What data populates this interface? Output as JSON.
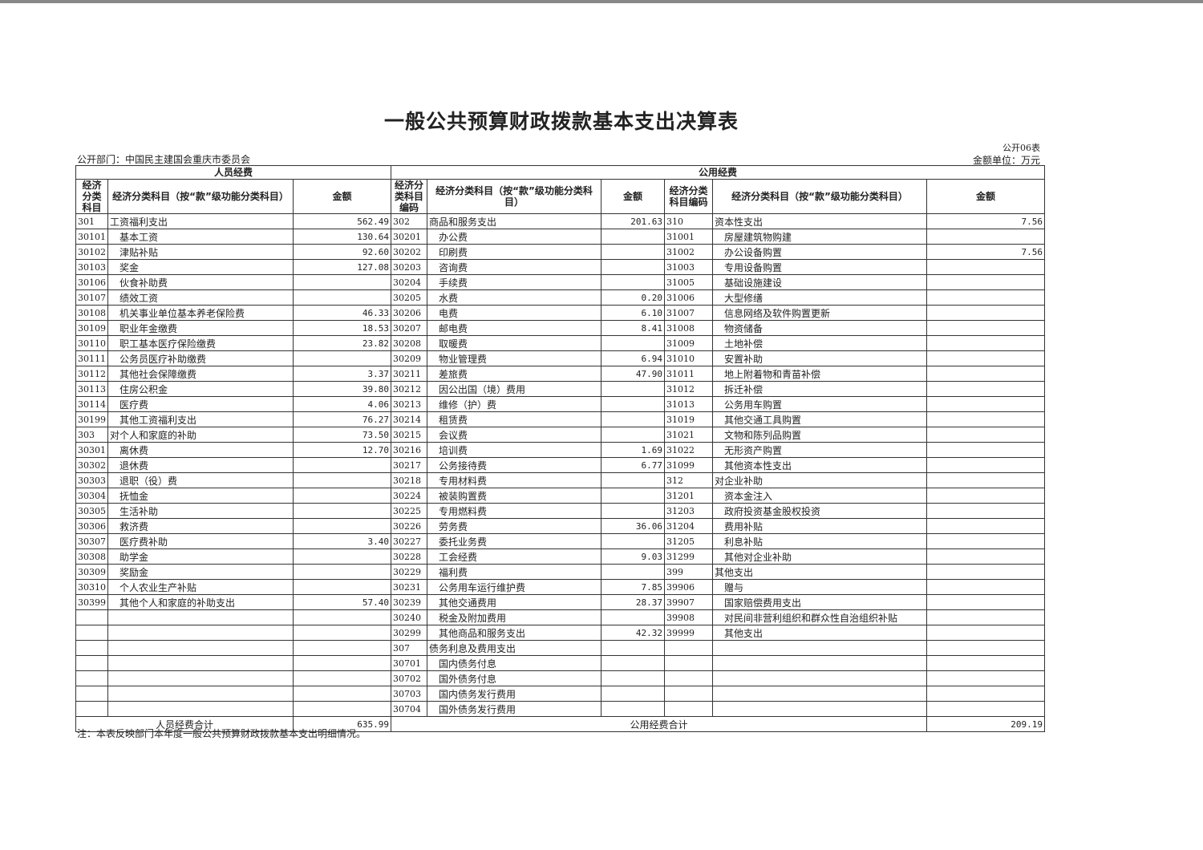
{
  "title": "一般公共预算财政拨款基本支出决算表",
  "table_no": "公开06表",
  "department": "公开部门：中国民主建国会重庆市委员会",
  "unit": "金额单位：万元",
  "headers": {
    "personnel": "人员经费",
    "public": "公用经费",
    "code_left": "经济分类科目",
    "code_mid": "经济分类科目编码",
    "code_right": "经济分类科目编码",
    "name_left": "经济分类科目（按“款”级功能分类科目）",
    "name_mid": "经济分类科目（按“款”级功能分类科目）",
    "name_right": "经济分类科目（按“款”级功能分类科目）",
    "amount": "金额"
  },
  "left": [
    [
      "301",
      "工资福利支出",
      "562.49"
    ],
    [
      "30101",
      "基本工资",
      "130.64"
    ],
    [
      "30102",
      "津贴补贴",
      "92.60"
    ],
    [
      "30103",
      "奖金",
      "127.08"
    ],
    [
      "30106",
      "伙食补助费",
      ""
    ],
    [
      "30107",
      "绩效工资",
      ""
    ],
    [
      "30108",
      "机关事业单位基本养老保险费",
      "46.33"
    ],
    [
      "30109",
      "职业年金缴费",
      "18.53"
    ],
    [
      "30110",
      "职工基本医疗保险缴费",
      "23.82"
    ],
    [
      "30111",
      "公务员医疗补助缴费",
      ""
    ],
    [
      "30112",
      "其他社会保障缴费",
      "3.37"
    ],
    [
      "30113",
      "住房公积金",
      "39.80"
    ],
    [
      "30114",
      "医疗费",
      "4.06"
    ],
    [
      "30199",
      "其他工资福利支出",
      "76.27"
    ],
    [
      "303",
      "对个人和家庭的补助",
      "73.50"
    ],
    [
      "30301",
      "离休费",
      "12.70"
    ],
    [
      "30302",
      "退休费",
      ""
    ],
    [
      "30303",
      "退职（役）费",
      ""
    ],
    [
      "30304",
      "抚恤金",
      ""
    ],
    [
      "30305",
      "生活补助",
      ""
    ],
    [
      "30306",
      "救济费",
      ""
    ],
    [
      "30307",
      "医疗费补助",
      "3.40"
    ],
    [
      "30308",
      "助学金",
      ""
    ],
    [
      "30309",
      "奖励金",
      ""
    ],
    [
      "30310",
      "个人农业生产补贴",
      ""
    ],
    [
      "30399",
      "其他个人和家庭的补助支出",
      "57.40"
    ],
    [
      "",
      "",
      ""
    ],
    [
      "",
      "",
      ""
    ],
    [
      "",
      "",
      ""
    ],
    [
      "",
      "",
      ""
    ],
    [
      "",
      "",
      ""
    ],
    [
      "",
      "",
      ""
    ],
    [
      "",
      "",
      ""
    ]
  ],
  "middle": [
    [
      "302",
      "商品和服务支出",
      "201.63"
    ],
    [
      "30201",
      "办公费",
      ""
    ],
    [
      "30202",
      "印刷费",
      ""
    ],
    [
      "30203",
      "咨询费",
      ""
    ],
    [
      "30204",
      "手续费",
      ""
    ],
    [
      "30205",
      "水费",
      "0.20"
    ],
    [
      "30206",
      "电费",
      "6.10"
    ],
    [
      "30207",
      "邮电费",
      "8.41"
    ],
    [
      "30208",
      "取暖费",
      ""
    ],
    [
      "30209",
      "物业管理费",
      "6.94"
    ],
    [
      "30211",
      "差旅费",
      "47.90"
    ],
    [
      "30212",
      "因公出国（境）费用",
      ""
    ],
    [
      "30213",
      "维修（护）费",
      ""
    ],
    [
      "30214",
      "租赁费",
      ""
    ],
    [
      "30215",
      "会议费",
      ""
    ],
    [
      "30216",
      "培训费",
      "1.69"
    ],
    [
      "30217",
      "公务接待费",
      "6.77"
    ],
    [
      "30218",
      "专用材料费",
      ""
    ],
    [
      "30224",
      "被装购置费",
      ""
    ],
    [
      "30225",
      "专用燃料费",
      ""
    ],
    [
      "30226",
      "劳务费",
      "36.06"
    ],
    [
      "30227",
      "委托业务费",
      ""
    ],
    [
      "30228",
      "工会经费",
      "9.03"
    ],
    [
      "30229",
      "福利费",
      ""
    ],
    [
      "30231",
      "公务用车运行维护费",
      "7.85"
    ],
    [
      "30239",
      "其他交通费用",
      "28.37"
    ],
    [
      "30240",
      "税金及附加费用",
      ""
    ],
    [
      "30299",
      "其他商品和服务支出",
      "42.32"
    ],
    [
      "307",
      "债务利息及费用支出",
      ""
    ],
    [
      "30701",
      "国内债务付息",
      ""
    ],
    [
      "30702",
      "国外债务付息",
      ""
    ],
    [
      "30703",
      "国内债务发行费用",
      ""
    ],
    [
      "30704",
      "国外债务发行费用",
      ""
    ]
  ],
  "right": [
    [
      "310",
      "资本性支出",
      "7.56"
    ],
    [
      "31001",
      "房屋建筑物购建",
      ""
    ],
    [
      "31002",
      "办公设备购置",
      "7.56"
    ],
    [
      "31003",
      "专用设备购置",
      ""
    ],
    [
      "31005",
      "基础设施建设",
      ""
    ],
    [
      "31006",
      "大型修缮",
      ""
    ],
    [
      "31007",
      "信息网络及软件购置更新",
      ""
    ],
    [
      "31008",
      "物资储备",
      ""
    ],
    [
      "31009",
      "土地补偿",
      ""
    ],
    [
      "31010",
      "安置补助",
      ""
    ],
    [
      "31011",
      "地上附着物和青苗补偿",
      ""
    ],
    [
      "31012",
      "拆迁补偿",
      ""
    ],
    [
      "31013",
      "公务用车购置",
      ""
    ],
    [
      "31019",
      "其他交通工具购置",
      ""
    ],
    [
      "31021",
      "文物和陈列品购置",
      ""
    ],
    [
      "31022",
      "无形资产购置",
      ""
    ],
    [
      "31099",
      "其他资本性支出",
      ""
    ],
    [
      "312",
      "对企业补助",
      ""
    ],
    [
      "31201",
      "资本金注入",
      ""
    ],
    [
      "31203",
      "政府投资基金股权投资",
      ""
    ],
    [
      "31204",
      "费用补贴",
      ""
    ],
    [
      "31205",
      "利息补贴",
      ""
    ],
    [
      "31299",
      "其他对企业补助",
      ""
    ],
    [
      "399",
      "其他支出",
      ""
    ],
    [
      "39906",
      "赠与",
      ""
    ],
    [
      "39907",
      "国家赔偿费用支出",
      ""
    ],
    [
      "39908",
      "对民间非营利组织和群众性自治组织补贴",
      ""
    ],
    [
      "39999",
      "其他支出",
      ""
    ],
    [
      "",
      "",
      ""
    ],
    [
      "",
      "",
      ""
    ],
    [
      "",
      "",
      ""
    ],
    [
      "",
      "",
      ""
    ],
    [
      "",
      "",
      ""
    ]
  ],
  "totals": {
    "personnel_label": "人员经费合计",
    "personnel_value": "635.99",
    "public_label": "公用经费合计",
    "public_value": "209.19"
  },
  "note": "注：本表反映部门本年度一般公共预算财政拨款基本支出明细情况。"
}
